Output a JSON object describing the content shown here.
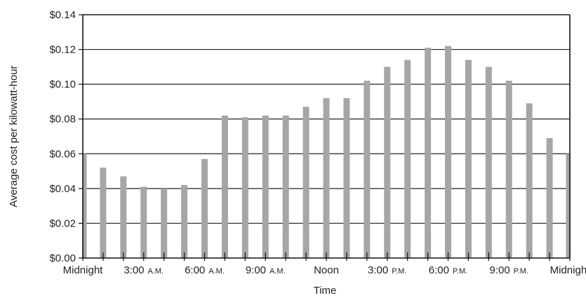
{
  "chart_data": {
    "type": "bar",
    "title": "",
    "xlabel": "Time",
    "ylabel": "Average cost per kilowatt-hour",
    "ylim": [
      0,
      0.14
    ],
    "y_ticks": [
      {
        "value": 0.0,
        "label": "$0.00"
      },
      {
        "value": 0.02,
        "label": "$0.02"
      },
      {
        "value": 0.04,
        "label": "$0.04"
      },
      {
        "value": 0.06,
        "label": "$0.06"
      },
      {
        "value": 0.08,
        "label": "$0.08"
      },
      {
        "value": 0.1,
        "label": "$0.10"
      },
      {
        "value": 0.12,
        "label": "$0.12"
      },
      {
        "value": 0.14,
        "label": "$0.14"
      }
    ],
    "x_ticks": [
      {
        "hour": 0,
        "main": "Midnight",
        "suffix": ""
      },
      {
        "hour": 3,
        "main": "3:00",
        "suffix": "A.M."
      },
      {
        "hour": 6,
        "main": "6:00",
        "suffix": "A.M."
      },
      {
        "hour": 9,
        "main": "9:00",
        "suffix": "A.M."
      },
      {
        "hour": 12,
        "main": "Noon",
        "suffix": ""
      },
      {
        "hour": 15,
        "main": "3:00",
        "suffix": "P.M."
      },
      {
        "hour": 18,
        "main": "6:00",
        "suffix": "P.M."
      },
      {
        "hour": 21,
        "main": "9:00",
        "suffix": "P.M."
      },
      {
        "hour": 24,
        "main": "Midnight",
        "suffix": ""
      }
    ],
    "x_range": [
      0,
      24
    ],
    "hours": [
      0,
      1,
      2,
      3,
      4,
      5,
      6,
      7,
      8,
      9,
      10,
      11,
      12,
      13,
      14,
      15,
      16,
      17,
      18,
      19,
      20,
      21,
      22,
      23,
      24
    ],
    "values": [
      0.06,
      0.052,
      0.047,
      0.041,
      0.04,
      0.042,
      0.057,
      0.082,
      0.081,
      0.082,
      0.082,
      0.087,
      0.092,
      0.092,
      0.102,
      0.11,
      0.114,
      0.121,
      0.122,
      0.114,
      0.11,
      0.102,
      0.089,
      0.069,
      0.06
    ],
    "grid": true,
    "bar_color": "#a6a6a6",
    "grid_color": "#222222",
    "axis_color": "#111111"
  }
}
